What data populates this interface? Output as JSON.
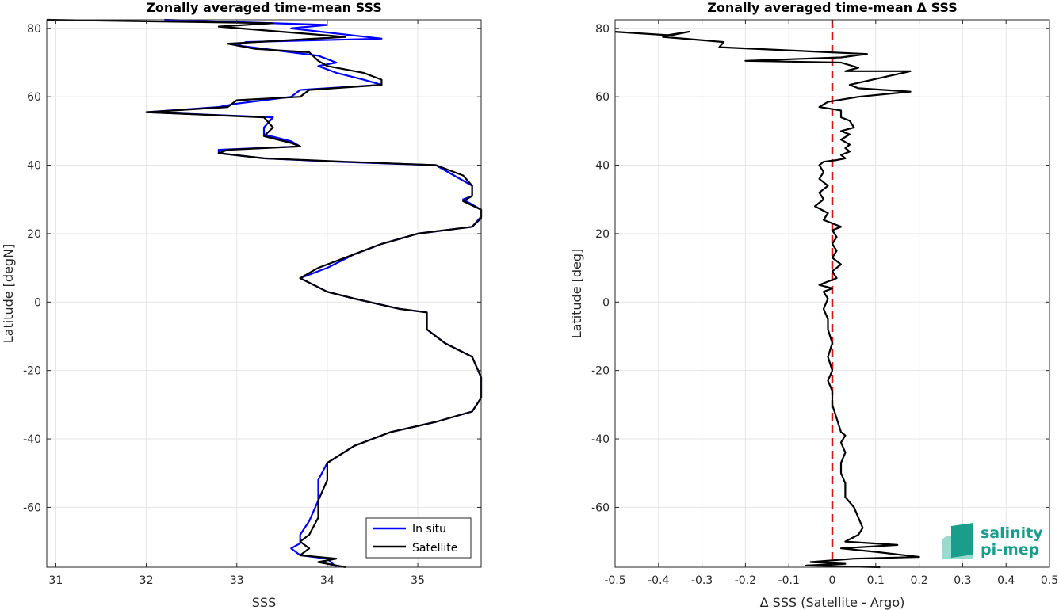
{
  "colors": {
    "in_situ": "#0000ff",
    "satellite": "#000000",
    "zero_line": "#dd1111",
    "grid": "#e5e5e5",
    "logo": "#1a9e8c"
  },
  "logo": {
    "line1": "salinity",
    "line2": "pi-mep"
  },
  "chart_data": [
    {
      "type": "line",
      "title": "Zonally averaged time-mean SSS",
      "xlabel": "SSS",
      "ylabel": "Latitude [degN]",
      "xlim": [
        30.9,
        35.7
      ],
      "ylim": [
        -77.5,
        82.5
      ],
      "xticks": [
        31,
        32,
        33,
        34,
        35
      ],
      "yticks": [
        -60,
        -40,
        -20,
        0,
        20,
        40,
        60,
        80
      ],
      "grid": true,
      "legend": {
        "position": "bottom-right",
        "entries": [
          "In situ",
          "Satellite"
        ]
      },
      "series": [
        {
          "name": "In situ",
          "color": "#0000ff",
          "points": [
            [
              32.2,
              82.5
            ],
            [
              34.0,
              81
            ],
            [
              33.6,
              80
            ],
            [
              34.6,
              77
            ],
            [
              33.1,
              76
            ],
            [
              33.0,
              75
            ],
            [
              33.9,
              72
            ],
            [
              34.1,
              70
            ],
            [
              33.9,
              69
            ],
            [
              34.1,
              67
            ],
            [
              34.4,
              65
            ],
            [
              34.6,
              63.5
            ],
            [
              33.7,
              62
            ],
            [
              33.6,
              60
            ],
            [
              33.0,
              58
            ],
            [
              32.8,
              57
            ],
            [
              32.0,
              55.5
            ],
            [
              33.4,
              54
            ],
            [
              33.3,
              51
            ],
            [
              33.3,
              49
            ],
            [
              33.6,
              47
            ],
            [
              33.7,
              45.5
            ],
            [
              32.8,
              44.5
            ],
            [
              32.8,
              43.5
            ],
            [
              33.3,
              42
            ],
            [
              34.1,
              41
            ],
            [
              35.2,
              40
            ],
            [
              35.4,
              37
            ],
            [
              35.6,
              34
            ],
            [
              35.6,
              31
            ],
            [
              35.5,
              30
            ],
            [
              35.7,
              27
            ],
            [
              35.7,
              25
            ],
            [
              35.6,
              22
            ],
            [
              35.0,
              20
            ],
            [
              34.6,
              17
            ],
            [
              34.3,
              14
            ],
            [
              34.0,
              10
            ],
            [
              33.9,
              9
            ],
            [
              33.7,
              7
            ],
            [
              34.0,
              3
            ],
            [
              34.3,
              1
            ],
            [
              34.8,
              -2
            ],
            [
              35.1,
              -3
            ],
            [
              35.1,
              -6
            ],
            [
              35.1,
              -8
            ],
            [
              35.3,
              -12
            ],
            [
              35.6,
              -16
            ],
            [
              35.7,
              -22
            ],
            [
              35.7,
              -28
            ],
            [
              35.6,
              -32
            ],
            [
              35.2,
              -35
            ],
            [
              34.7,
              -38
            ],
            [
              34.3,
              -42
            ],
            [
              34.0,
              -47
            ],
            [
              33.9,
              -52
            ],
            [
              33.9,
              -58
            ],
            [
              33.8,
              -64
            ],
            [
              33.7,
              -68
            ],
            [
              33.7,
              -70.5
            ],
            [
              33.6,
              -72
            ],
            [
              33.7,
              -74
            ],
            [
              34.0,
              -75
            ],
            [
              34.1,
              -77.5
            ]
          ]
        },
        {
          "name": "Satellite",
          "color": "#000000",
          "points": [
            [
              30.9,
              82.5
            ],
            [
              33.4,
              81.5
            ],
            [
              32.8,
              80.5
            ],
            [
              34.2,
              77.5
            ],
            [
              32.9,
              75.5
            ],
            [
              33.2,
              74
            ],
            [
              33.8,
              73
            ],
            [
              33.9,
              70.5
            ],
            [
              34.0,
              69
            ],
            [
              34.4,
              67
            ],
            [
              34.6,
              65
            ],
            [
              34.6,
              63.5
            ],
            [
              33.8,
              62
            ],
            [
              33.7,
              60
            ],
            [
              33.0,
              59
            ],
            [
              32.9,
              57
            ],
            [
              32.0,
              55.5
            ],
            [
              33.3,
              54
            ],
            [
              33.4,
              51
            ],
            [
              33.3,
              48.5
            ],
            [
              33.6,
              46.5
            ],
            [
              33.7,
              45.5
            ],
            [
              32.9,
              44.5
            ],
            [
              32.8,
              43.5
            ],
            [
              33.3,
              42
            ],
            [
              34.2,
              41
            ],
            [
              35.2,
              40
            ],
            [
              35.5,
              37
            ],
            [
              35.6,
              34
            ],
            [
              35.6,
              31
            ],
            [
              35.5,
              29.5
            ],
            [
              35.7,
              27
            ],
            [
              35.7,
              24.5
            ],
            [
              35.6,
              22
            ],
            [
              35.0,
              20
            ],
            [
              34.6,
              17
            ],
            [
              34.3,
              14
            ],
            [
              33.9,
              10
            ],
            [
              33.7,
              7
            ],
            [
              34.0,
              3
            ],
            [
              34.3,
              1
            ],
            [
              34.8,
              -2
            ],
            [
              35.1,
              -3
            ],
            [
              35.1,
              -6
            ],
            [
              35.1,
              -8
            ],
            [
              35.3,
              -12
            ],
            [
              35.6,
              -16
            ],
            [
              35.7,
              -22
            ],
            [
              35.7,
              -28
            ],
            [
              35.6,
              -32
            ],
            [
              35.2,
              -35
            ],
            [
              34.7,
              -38
            ],
            [
              34.3,
              -42
            ],
            [
              34.0,
              -47
            ],
            [
              34.0,
              -52
            ],
            [
              33.9,
              -58
            ],
            [
              33.9,
              -63
            ],
            [
              33.8,
              -68
            ],
            [
              33.7,
              -70
            ],
            [
              33.8,
              -72
            ],
            [
              33.7,
              -74
            ],
            [
              34.1,
              -75
            ],
            [
              33.9,
              -76
            ],
            [
              34.2,
              -77.5
            ]
          ]
        }
      ]
    },
    {
      "type": "line",
      "title": "Zonally averaged time-mean Δ SSS",
      "xlabel": "Δ SSS (Satellite - Argo)",
      "ylabel": "Latitude [deg]",
      "xlim": [
        -0.5,
        0.5
      ],
      "ylim": [
        -77.5,
        82.5
      ],
      "xticks": [
        -0.5,
        -0.4,
        -0.3,
        -0.2,
        -0.1,
        0,
        0.1,
        0.2,
        0.3,
        0.4,
        0.5
      ],
      "yticks": [
        -60,
        -40,
        -20,
        0,
        20,
        40,
        60,
        80
      ],
      "grid": true,
      "reference_line": {
        "x": 0,
        "style": "dashed"
      },
      "series": [
        {
          "name": "Satellite",
          "color": "#000000",
          "points": [
            [
              -0.5,
              79
            ],
            [
              -0.38,
              78
            ],
            [
              -0.33,
              79
            ],
            [
              -0.39,
              77.5
            ],
            [
              -0.25,
              76
            ],
            [
              -0.26,
              74.5
            ],
            [
              0.08,
              72.5
            ],
            [
              0.02,
              71.5
            ],
            [
              -0.2,
              70.5
            ],
            [
              0.02,
              70
            ],
            [
              0.06,
              68.5
            ],
            [
              0.03,
              67.5
            ],
            [
              0.18,
              67.5
            ],
            [
              0.04,
              63.5
            ],
            [
              0.06,
              62.5
            ],
            [
              0.18,
              61.5
            ],
            [
              0.06,
              60
            ],
            [
              -0.01,
              58.5
            ],
            [
              -0.03,
              57
            ],
            [
              0.02,
              56
            ],
            [
              0.02,
              54
            ],
            [
              0.04,
              53
            ],
            [
              0.05,
              51
            ],
            [
              0.02,
              50
            ],
            [
              0.04,
              49
            ],
            [
              0.02,
              47.5
            ],
            [
              0.04,
              46
            ],
            [
              0.03,
              45
            ],
            [
              0.04,
              44
            ],
            [
              0.02,
              43
            ],
            [
              0.03,
              42
            ],
            [
              0.01,
              41.5
            ],
            [
              -0.02,
              41
            ],
            [
              -0.03,
              40
            ],
            [
              -0.02,
              38
            ],
            [
              -0.03,
              36
            ],
            [
              -0.01,
              34
            ],
            [
              -0.03,
              32
            ],
            [
              -0.02,
              30
            ],
            [
              -0.04,
              28
            ],
            [
              -0.01,
              26
            ],
            [
              -0.02,
              24
            ],
            [
              0.0,
              23
            ],
            [
              0.02,
              22
            ],
            [
              0.0,
              21
            ],
            [
              0.01,
              19
            ],
            [
              0.0,
              17
            ],
            [
              0.01,
              15
            ],
            [
              0.0,
              13
            ],
            [
              0.02,
              11
            ],
            [
              0.0,
              9
            ],
            [
              0.01,
              7
            ],
            [
              -0.01,
              6
            ],
            [
              -0.03,
              5
            ],
            [
              0.0,
              4
            ],
            [
              -0.02,
              3
            ],
            [
              -0.01,
              1
            ],
            [
              -0.02,
              -2
            ],
            [
              -0.01,
              -5
            ],
            [
              -0.01,
              -8
            ],
            [
              0.0,
              -12
            ],
            [
              -0.01,
              -16
            ],
            [
              0.0,
              -20
            ],
            [
              -0.01,
              -23
            ],
            [
              0.0,
              -26
            ],
            [
              0.0,
              -30
            ],
            [
              0.01,
              -34
            ],
            [
              0.02,
              -38
            ],
            [
              0.03,
              -39
            ],
            [
              0.02,
              -41
            ],
            [
              0.03,
              -44
            ],
            [
              0.02,
              -47
            ],
            [
              0.02,
              -50
            ],
            [
              0.03,
              -53
            ],
            [
              0.03,
              -57
            ],
            [
              0.05,
              -60
            ],
            [
              0.06,
              -63
            ],
            [
              0.07,
              -66
            ],
            [
              0.06,
              -68
            ],
            [
              0.03,
              -70
            ],
            [
              0.15,
              -71
            ],
            [
              0.02,
              -72
            ],
            [
              0.1,
              -73
            ],
            [
              0.2,
              -74.5
            ],
            [
              0.05,
              -75
            ],
            [
              -0.05,
              -76
            ],
            [
              0.03,
              -76.5
            ],
            [
              -0.06,
              -77
            ],
            [
              0.11,
              -77.5
            ]
          ]
        }
      ]
    }
  ]
}
